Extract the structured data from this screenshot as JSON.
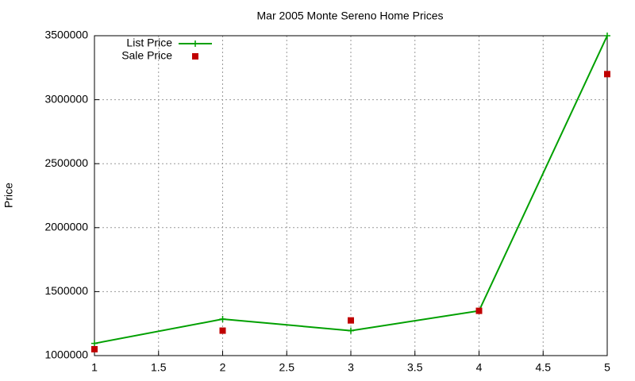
{
  "chart_data": {
    "type": "line",
    "title": "Mar 2005 Monte Sereno Home Prices",
    "y_label": "Price",
    "x": [
      1,
      2,
      3,
      4,
      5
    ],
    "series": [
      {
        "name": "List Price",
        "color": "#00a000",
        "style": "linespoints",
        "values": [
          1095000,
          1285000,
          1195000,
          1350000,
          3500000
        ]
      },
      {
        "name": "Sale Price",
        "color": "#c00000",
        "style": "points",
        "values": [
          1050000,
          1195000,
          1275000,
          1350000,
          3200000
        ]
      }
    ],
    "xlim": [
      1,
      5
    ],
    "xticks": [
      1,
      1.5,
      2,
      2.5,
      3,
      3.5,
      4,
      4.5,
      5
    ],
    "ylim": [
      1000000,
      3500000
    ],
    "yticks": [
      1000000,
      1500000,
      2000000,
      2500000,
      3000000,
      3500000
    ],
    "grid": true,
    "legend": "top-left"
  }
}
